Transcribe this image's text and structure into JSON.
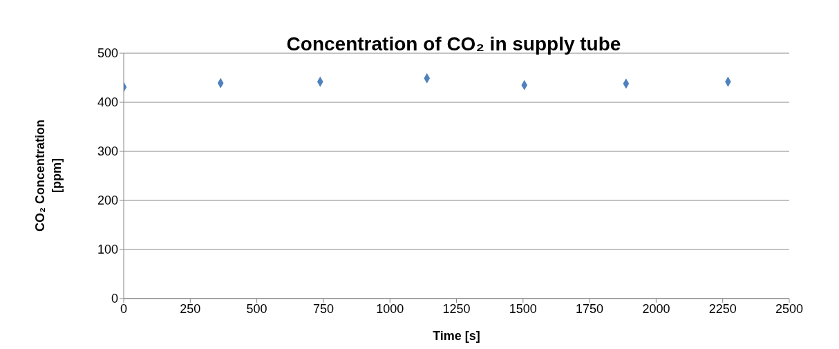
{
  "chart_data": {
    "type": "scatter",
    "title": "Concentration of CO₂ in supply tube",
    "xlabel": "Time [s]",
    "ylabel": "CO₂ Concentration [ppm]",
    "x": [
      0,
      364,
      738,
      1139,
      1505,
      1887,
      2270
    ],
    "series": [
      {
        "color": "#4f81bd",
        "values": [
          431,
          439,
          442,
          449,
          435,
          438,
          442
        ]
      }
    ],
    "xlim": [
      0,
      2500
    ],
    "xticks": [
      0,
      250,
      500,
      750,
      1000,
      1250,
      1500,
      1750,
      2000,
      2250,
      2500
    ],
    "ylim": [
      0,
      500
    ],
    "yticks": [
      0,
      100,
      200,
      300,
      400,
      500
    ],
    "grid": "y",
    "legend": false,
    "marker": "diamond"
  }
}
